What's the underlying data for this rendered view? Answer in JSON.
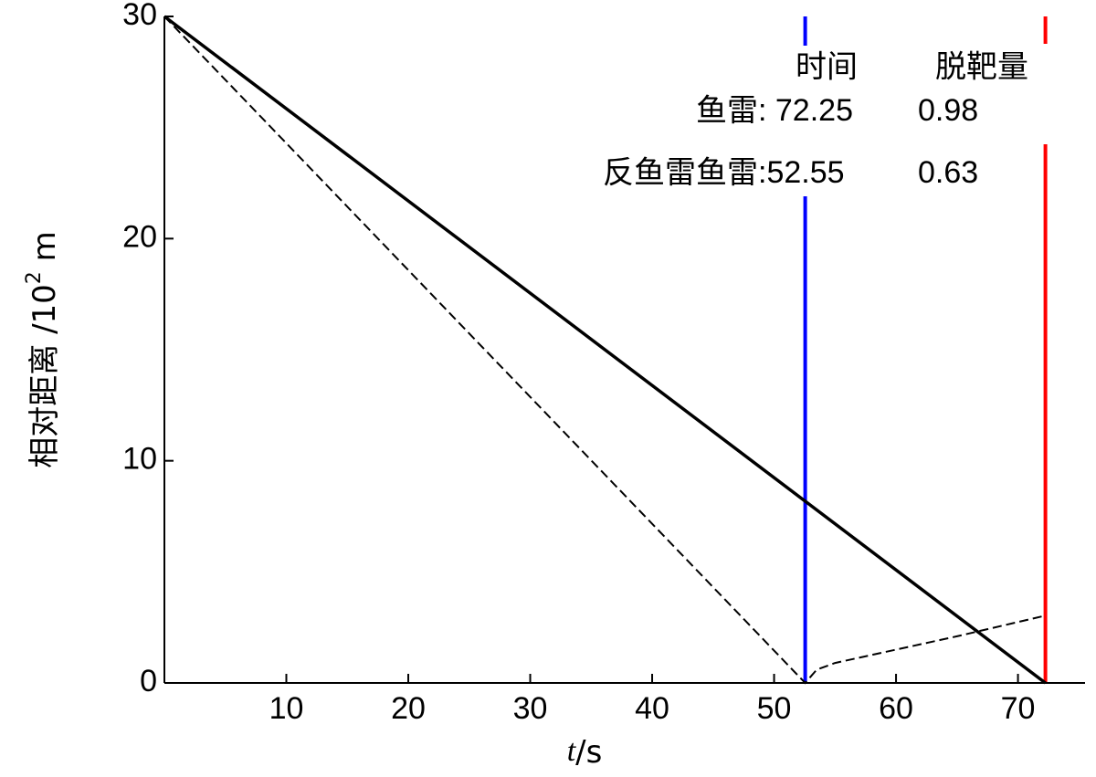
{
  "chart_data": {
    "type": "line",
    "x_label": {
      "italic": "t",
      "rest": "/s"
    },
    "y_label": {
      "main": "相对距离 /10",
      "sup": "2",
      "unit": " m"
    },
    "xlim": [
      0,
      75.5
    ],
    "ylim": [
      0,
      30
    ],
    "xticks": [
      10,
      20,
      30,
      40,
      50,
      60,
      70
    ],
    "yticks": [
      0,
      10,
      20,
      30
    ],
    "series": [
      {
        "name": "鱼雷",
        "color": "#000000",
        "dash": false,
        "x": [
          0,
          72.25
        ],
        "values": [
          30,
          0
        ]
      },
      {
        "name": "反鱼雷鱼雷",
        "color": "#000000",
        "dash": true,
        "x": [
          0,
          52.55,
          53.5,
          55,
          60,
          65,
          72
        ],
        "values": [
          30,
          0,
          0.6,
          0.9,
          1.5,
          2.1,
          3.0
        ]
      }
    ],
    "vlines": [
      {
        "x": 52.55,
        "color": "#0000ff"
      },
      {
        "x": 72.25,
        "color": "#ff0000"
      }
    ],
    "annotations": {
      "header": [
        "时间",
        "脱靶量"
      ],
      "rows": [
        [
          "鱼雷",
          ": 72.25",
          "0.98"
        ],
        [
          "反鱼雷鱼雷",
          ":52.55",
          "0.63"
        ]
      ]
    }
  }
}
